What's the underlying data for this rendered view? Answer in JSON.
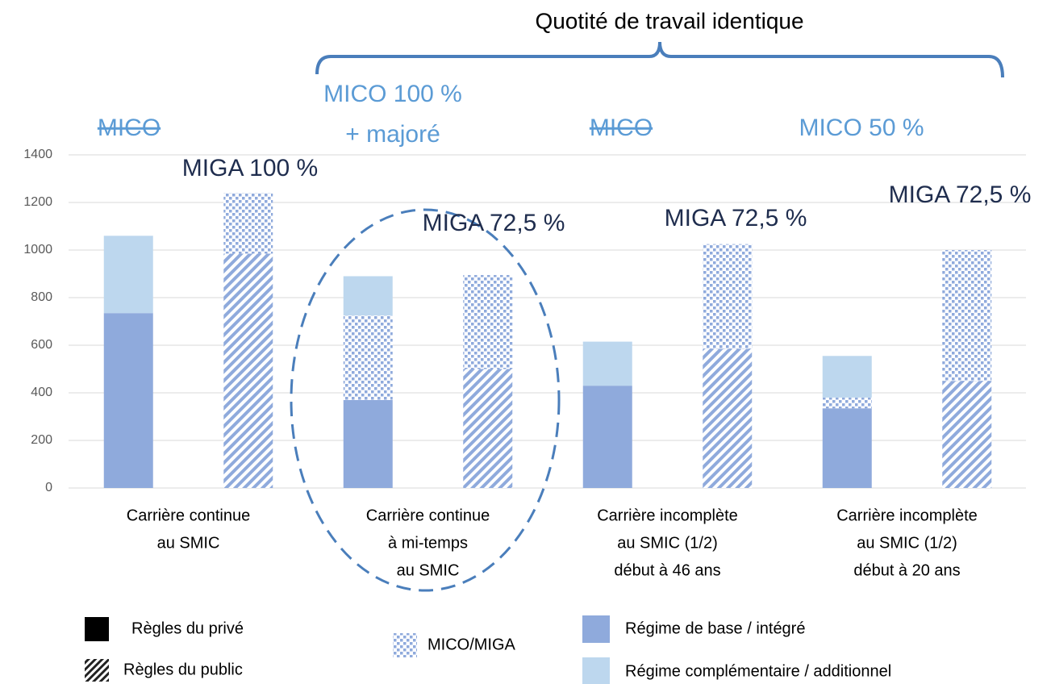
{
  "chart_data": {
    "type": "stacked_bar",
    "categories": [
      [
        "Carrière continue",
        "au SMIC"
      ],
      [
        "Carrière continue",
        "à mi-temps",
        "au SMIC"
      ],
      [
        "Carrière incomplète",
        "au SMIC (1/2)",
        "début à 46 ans"
      ],
      [
        "Carrière incomplète",
        "au SMIC (1/2)",
        "début à 20 ans"
      ]
    ],
    "rules": [
      "Règles du privé",
      "Règles du public"
    ],
    "series": [
      {
        "name": "Régime de base / intégré",
        "color": "#8faadc",
        "values": [
          [
            735,
            985
          ],
          [
            370,
            500
          ],
          [
            430,
            585
          ],
          [
            335,
            450
          ]
        ]
      },
      {
        "name": "MICO/MIGA",
        "color": "#8faadc",
        "pattern": "dots",
        "values": [
          [
            0,
            255
          ],
          [
            355,
            395
          ],
          [
            0,
            440
          ],
          [
            45,
            550
          ]
        ]
      },
      {
        "name": "Régime complémentaire / additionnel",
        "color": "#bdd7ee",
        "values": [
          [
            325,
            0
          ],
          [
            165,
            0
          ],
          [
            185,
            0
          ],
          [
            175,
            0
          ]
        ]
      }
    ],
    "ylim": [
      0,
      1400
    ],
    "yticks": [
      0,
      200,
      400,
      600,
      800,
      1000,
      1200,
      1400
    ],
    "grid": true,
    "annotations": [
      {
        "text": [
          "MICO"
        ],
        "color": "#5b9bd5",
        "strike": true
      },
      {
        "text": [
          "MIGA 100 %"
        ],
        "color": "#1f2d4e"
      },
      {
        "text": [
          "MICO 100 %",
          "+ majoré"
        ],
        "color": "#5b9bd5"
      },
      {
        "text": [
          "MIGA 72,5 %"
        ],
        "color": "#1f2d4e"
      },
      {
        "text": [
          "MICO"
        ],
        "color": "#5b9bd5",
        "strike": true
      },
      {
        "text": [
          "MIGA 72,5 %"
        ],
        "color": "#1f2d4e"
      },
      {
        "text": [
          "MICO 50 %"
        ],
        "color": "#5b9bd5"
      },
      {
        "text": [
          "MIGA 72,5 %"
        ],
        "color": "#1f2d4e"
      }
    ],
    "brace_label": "Quotité de travail identique"
  }
}
